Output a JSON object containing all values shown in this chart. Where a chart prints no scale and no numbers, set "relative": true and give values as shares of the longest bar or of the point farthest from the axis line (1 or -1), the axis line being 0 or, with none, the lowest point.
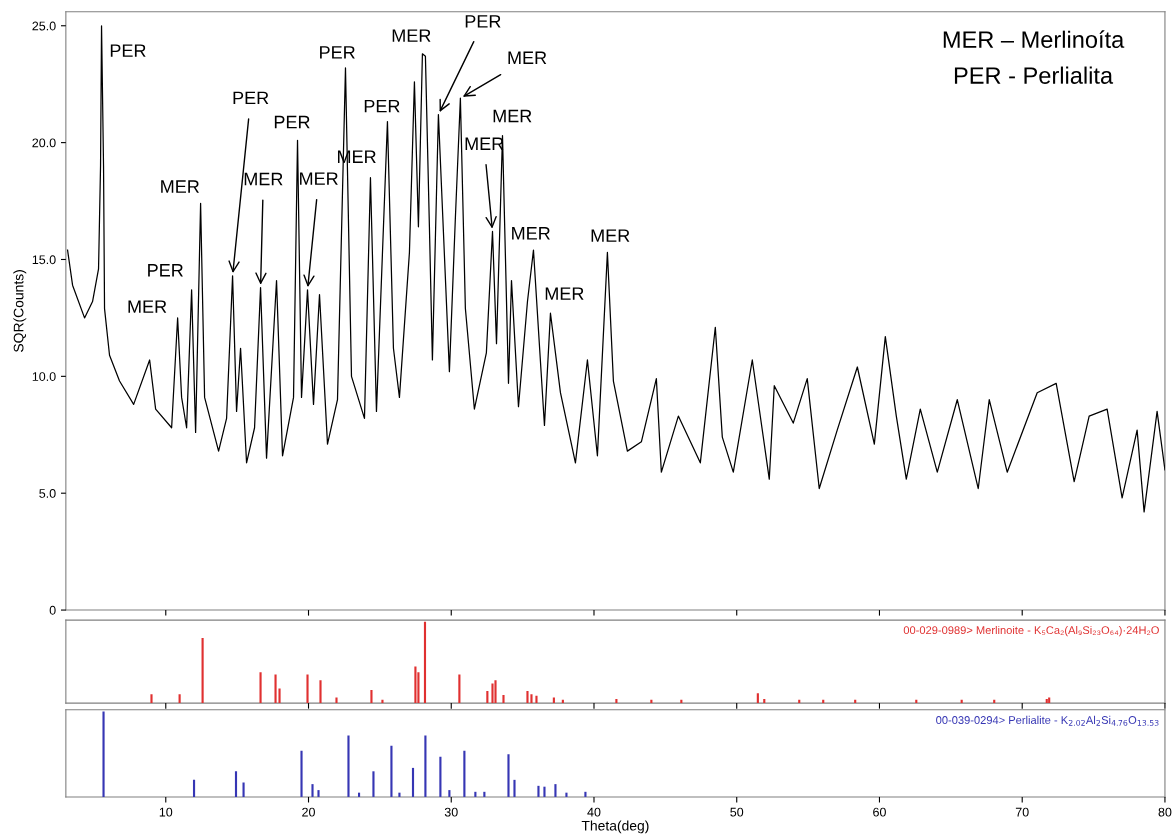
{
  "chart_data": [
    {
      "type": "line",
      "ylabel": "SQR(Counts)",
      "xlim": [
        3,
        80
      ],
      "ylim": [
        0,
        25.6
      ],
      "xticks": [
        10,
        20,
        30,
        40,
        50,
        60,
        70,
        80
      ],
      "yticks": [
        0,
        {
          "value": 5,
          "label": "5.0"
        },
        {
          "value": 10,
          "label": "10.0"
        },
        {
          "value": 15,
          "label": "15.0"
        },
        {
          "value": 20,
          "label": "20.0"
        },
        {
          "value": 25,
          "label": "25.0"
        }
      ],
      "tick_labels": "y",
      "series": [
        {
          "color": "#000000",
          "x": [
            3.12,
            3.47,
            4.31,
            4.87,
            5.29,
            5.43,
            5.5,
            5.64,
            5.71,
            6.06,
            6.76,
            7.75,
            8.87,
            9.29,
            10.41,
            10.83,
            11.11,
            11.46,
            11.81,
            12.09,
            12.44,
            12.72,
            13.7,
            14.26,
            14.68,
            14.96,
            15.24,
            15.66,
            16.22,
            16.64,
            17.06,
            17.76,
            18.18,
            18.95,
            19.23,
            19.51,
            19.93,
            20.35,
            20.77,
            21.33,
            22.03,
            22.59,
            23.01,
            23.92,
            24.34,
            24.76,
            25.53,
            25.95,
            26.37,
            27.07,
            27.42,
            27.7,
            27.98,
            28.19,
            28.47,
            28.68,
            29.1,
            29.87,
            30.29,
            30.64,
            30.99,
            31.62,
            32.46,
            32.89,
            33.17,
            33.59,
            34.01,
            34.22,
            34.71,
            35.34,
            35.76,
            36.53,
            36.95,
            37.65,
            38.7,
            39.54,
            40.24,
            40.94,
            41.36,
            42.34,
            43.32,
            44.37,
            44.72,
            45.91,
            47.45,
            48.5,
            48.99,
            49.76,
            51.09,
            52.28,
            52.63,
            53.96,
            54.94,
            55.78,
            57.04,
            58.45,
            59.64,
            60.41,
            61.18,
            61.88,
            62.86,
            64.05,
            65.45,
            66.92,
            67.69,
            68.95,
            71.05,
            72.38,
            73.64,
            74.69,
            75.95,
            77.0,
            78.05,
            78.54,
            79.45,
            80.0
          ],
          "values": [
            15.4,
            13.9,
            12.5,
            13.2,
            14.6,
            19.0,
            25.0,
            19.0,
            12.9,
            10.9,
            9.8,
            8.8,
            10.7,
            8.6,
            7.8,
            12.5,
            9.1,
            7.8,
            13.7,
            7.6,
            17.4,
            9.1,
            6.8,
            8.2,
            14.3,
            8.5,
            11.2,
            6.3,
            7.8,
            13.8,
            6.5,
            14.1,
            6.6,
            9.1,
            20.1,
            9.1,
            13.7,
            8.8,
            13.5,
            7.1,
            9.0,
            23.2,
            10.0,
            8.2,
            18.5,
            8.5,
            20.9,
            11.2,
            9.1,
            15.3,
            22.6,
            16.4,
            23.8,
            23.7,
            16.4,
            10.7,
            21.2,
            10.2,
            16.8,
            21.9,
            12.9,
            8.6,
            11.0,
            16.2,
            11.4,
            20.3,
            9.7,
            14.1,
            8.7,
            13.2,
            15.4,
            7.9,
            12.7,
            9.3,
            6.3,
            10.7,
            6.6,
            15.3,
            9.8,
            6.8,
            7.2,
            9.9,
            5.9,
            8.3,
            6.3,
            12.1,
            7.4,
            5.9,
            10.7,
            5.6,
            9.6,
            8.0,
            9.9,
            5.2,
            7.7,
            10.4,
            7.1,
            11.7,
            8.3,
            5.6,
            8.6,
            5.9,
            9.0,
            5.2,
            9.0,
            5.9,
            9.3,
            9.7,
            5.5,
            8.3,
            8.6,
            4.8,
            7.7,
            4.2,
            8.5,
            6.0
          ]
        }
      ],
      "annotations": [
        "MER – Merlinoíta",
        "PER - Perlialita",
        {
          "text": "PER",
          "x": 5.5,
          "y": 25.0
        },
        {
          "text": "MER",
          "x": 10.83,
          "y": 12.5
        },
        {
          "text": "PER",
          "x": 11.81,
          "y": 13.7
        },
        {
          "text": "MER",
          "x": 12.44,
          "y": 17.4
        },
        {
          "text": "PER",
          "x": 14.68,
          "y": 14.3
        },
        {
          "text": "MER",
          "x": 16.64,
          "y": 13.8
        },
        {
          "text": "PER",
          "x": 19.23,
          "y": 20.1
        },
        {
          "text": "MER",
          "x": 19.93,
          "y": 13.7
        },
        {
          "text": "PER",
          "x": 22.59,
          "y": 23.2
        },
        {
          "text": "MER",
          "x": 24.34,
          "y": 18.5
        },
        {
          "text": "PER",
          "x": 25.53,
          "y": 20.9
        },
        {
          "text": "MER",
          "x": 27.98,
          "y": 23.8
        },
        {
          "text": "PER",
          "x": 29.1,
          "y": 21.2
        },
        {
          "text": "MER",
          "x": 30.64,
          "y": 21.9
        },
        {
          "text": "MER",
          "x": 33.59,
          "y": 20.3
        },
        {
          "text": "MER",
          "x": 32.89,
          "y": 16.2
        },
        {
          "text": "MER",
          "x": 35.76,
          "y": 15.4
        },
        {
          "text": "MER",
          "x": 36.95,
          "y": 12.7
        },
        {
          "text": "MER",
          "x": 40.94,
          "y": 15.3
        }
      ]
    },
    {
      "type": "bar",
      "relative": true,
      "xlim": [
        3,
        80
      ],
      "xticks": [
        10,
        20,
        30,
        40,
        50,
        60,
        70,
        80
      ],
      "tick_labels": false,
      "series": [
        {
          "color": "#e03030",
          "x": [
            9.0,
            10.97,
            12.58,
            16.64,
            17.69,
            17.97,
            19.93,
            20.84,
            21.96,
            24.41,
            25.18,
            27.49,
            27.7,
            28.16,
            30.57,
            32.53,
            32.89,
            33.1,
            33.66,
            35.34,
            35.62,
            35.97,
            37.19,
            37.82,
            41.57,
            44.02,
            46.12,
            51.48,
            51.93,
            54.38,
            56.06,
            58.3,
            62.58,
            65.76,
            68.04,
            71.72,
            71.89
          ],
          "values": [
            0.11,
            0.11,
            0.8,
            0.38,
            0.35,
            0.18,
            0.35,
            0.28,
            0.07,
            0.16,
            0.04,
            0.45,
            0.38,
            1.0,
            0.35,
            0.15,
            0.24,
            0.28,
            0.1,
            0.15,
            0.11,
            0.09,
            0.07,
            0.04,
            0.05,
            0.04,
            0.04,
            0.12,
            0.05,
            0.04,
            0.04,
            0.04,
            0.04,
            0.04,
            0.04,
            0.05,
            0.07
          ]
        }
      ],
      "annotations": [
        "00-029-0989> Merlinoite - K₅Ca₂(Al₉Si₂₃O₆₄)·24H₂O"
      ]
    },
    {
      "type": "bar",
      "relative": true,
      "xlabel": "Theta(deg)",
      "xlim": [
        3,
        80
      ],
      "xticks": [
        10,
        20,
        30,
        40,
        50,
        60,
        70,
        80
      ],
      "tick_labels": "x",
      "series": [
        {
          "color": "#3636b4",
          "x": [
            5.64,
            11.98,
            14.92,
            15.45,
            19.51,
            20.28,
            20.7,
            22.8,
            23.54,
            24.55,
            25.81,
            26.37,
            27.32,
            28.19,
            29.24,
            29.87,
            30.92,
            31.69,
            32.32,
            34.01,
            34.43,
            36.11,
            36.53,
            37.3,
            38.07,
            39.4
          ],
          "values": [
            1.0,
            0.2,
            0.3,
            0.17,
            0.54,
            0.15,
            0.08,
            0.72,
            0.05,
            0.3,
            0.6,
            0.05,
            0.34,
            0.72,
            0.47,
            0.08,
            0.54,
            0.06,
            0.06,
            0.5,
            0.2,
            0.13,
            0.12,
            0.15,
            0.05,
            0.06
          ]
        }
      ],
      "annotations": [
        "00-039-0294> Perlialite - K$_{2.02}$Al$_{2}$Si$_{4.76}$O$_{13.53}$"
      ]
    }
  ]
}
